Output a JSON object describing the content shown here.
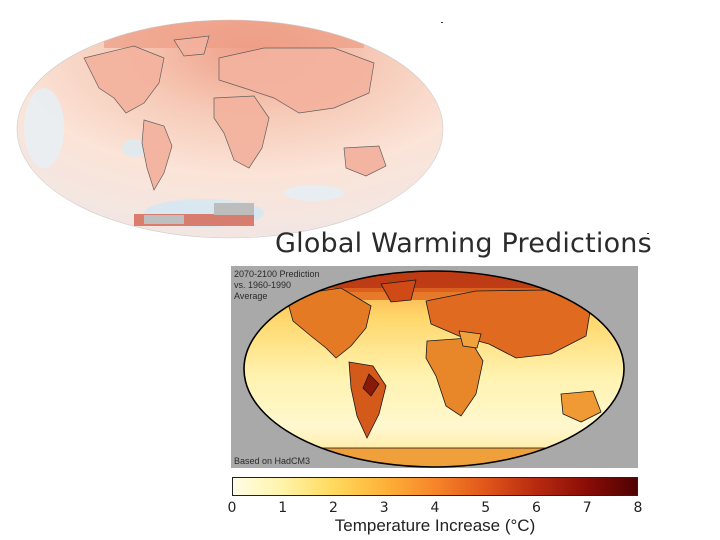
{
  "slide_title": "Global Warming Predictions",
  "prediction_map": {
    "period_lines": [
      "2070-2100 Prediction",
      "vs. 1960-1990",
      "Average"
    ],
    "source_note": "Based on HadCM3"
  },
  "colorbar": {
    "ticks": [
      "0",
      "1",
      "2",
      "3",
      "4",
      "5",
      "6",
      "7",
      "8"
    ],
    "range": [
      0,
      8
    ],
    "label": "Temperature Increase (°C)",
    "colors": [
      "#fffde6",
      "#fff3a8",
      "#ffd95c",
      "#fdb238",
      "#f7852a",
      "#e0561a",
      "#b82a10",
      "#8a0d06",
      "#4f0202"
    ]
  },
  "colors": {
    "ocean_warm": "#fbe8d9",
    "ocean_cool": "#ddeef6",
    "land_warm": "#f4b49a",
    "panel_bg": "#a9a9a9",
    "pred_ocean": "#fff0ad",
    "pred_land": "#e8751f"
  }
}
